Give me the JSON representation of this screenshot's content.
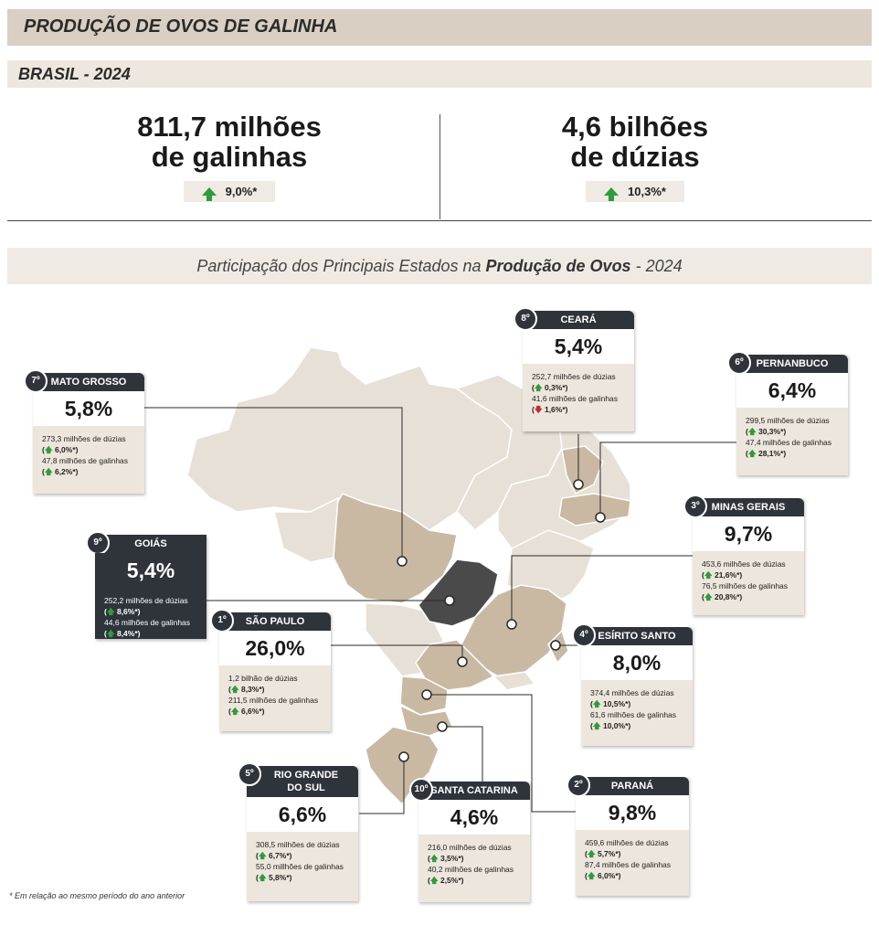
{
  "title": "PRODUÇÃO DE OVOS DE GALINHA",
  "subtitle": "BRASIL - 2024",
  "kpis": [
    {
      "line1": "811,7 milhões",
      "line2": "de galinhas",
      "variation": "9,0%*"
    },
    {
      "line1": "4,6 bilhões",
      "line2": "de dúzias",
      "variation": "10,3%*"
    }
  ],
  "map_title": {
    "prefix": "Participação dos Principais Estados na ",
    "bold": "Produção de Ovos",
    "suffix": " - 2024"
  },
  "footnote": "* Em relação ao mesmo período do ano anterior",
  "colors": {
    "header_bg": "#d9cfc2",
    "card_dark": "#2f333a",
    "state_highlight": "#c9b9a3",
    "state_base": "#e6e0d7",
    "goias": "#4a4a4a",
    "up": "#2e9c3a",
    "down": "#c62828"
  },
  "chart_data": {
    "type": "table",
    "columns": [
      "rank",
      "state",
      "share_pct",
      "dozens",
      "dozens_var",
      "hens",
      "hens_var"
    ],
    "rows": [
      {
        "rank": "1º",
        "state": "SÃO PAULO",
        "share": "26,0%",
        "dozens": "1,2 bilhão de dúzias",
        "dozens_var": "8,3%*",
        "dozens_dir": "up",
        "hens": "211,5 milhões de galinhas",
        "hens_var": "6,6%*",
        "hens_dir": "up"
      },
      {
        "rank": "2º",
        "state": "PARANÁ",
        "share": "9,8%",
        "dozens": "459,6 milhões de dúzias",
        "dozens_var": "5,7%*",
        "dozens_dir": "up",
        "hens": "87,4 milhões de galinhas",
        "hens_var": "6,0%*",
        "hens_dir": "up"
      },
      {
        "rank": "3º",
        "state": "MINAS GERAIS",
        "share": "9,7%",
        "dozens": "453,6 milhões de dúzias",
        "dozens_var": "21,6%*",
        "dozens_dir": "up",
        "hens": "76,5 milhões de galinhas",
        "hens_var": "20,8%*",
        "hens_dir": "up"
      },
      {
        "rank": "4º",
        "state": "ESÍRITO SANTO",
        "share": "8,0%",
        "dozens": "374,4 milhões de dúzias",
        "dozens_var": "10,5%*",
        "dozens_dir": "up",
        "hens": "61,6 milhões de galinhas",
        "hens_var": "10,0%*",
        "hens_dir": "up"
      },
      {
        "rank": "5º",
        "state": "RIO GRANDE DO SUL",
        "share": "6,6%",
        "dozens": "308,5 milhões de dúzias",
        "dozens_var": "6,7%*",
        "dozens_dir": "up",
        "hens": "55,0 millhões de galinhas",
        "hens_var": "5,8%*",
        "hens_dir": "up"
      },
      {
        "rank": "6º",
        "state": "PERNANBUCO",
        "share": "6,4%",
        "dozens": "299,5 milhões de dúzias",
        "dozens_var": "30,3%*",
        "dozens_dir": "up",
        "hens": "47,4 milhões de galinhas",
        "hens_var": "28,1%*",
        "hens_dir": "up"
      },
      {
        "rank": "7º",
        "state": "MATO GROSSO",
        "share": "5,8%",
        "dozens": "273,3 milhões de dúzias",
        "dozens_var": "6,0%*",
        "dozens_dir": "up",
        "hens": "47,8 milhões de galinhas",
        "hens_var": "6,2%*",
        "hens_dir": "up"
      },
      {
        "rank": "8º",
        "state": "CEARÁ",
        "share": "5,4%",
        "dozens": "252,7 milhões de dúzias",
        "dozens_var": "0,3%*",
        "dozens_dir": "up",
        "hens": "41,6 milhões de galinhas",
        "hens_var": "1,6%*",
        "hens_dir": "down"
      },
      {
        "rank": "9º",
        "state": "GOIÁS",
        "share": "5,4%",
        "dozens": "252,2 milhões de dúzias",
        "dozens_var": "8,6%*",
        "dozens_dir": "up",
        "hens": "44,6 milhões de galinhas",
        "hens_var": "8,4%*",
        "hens_dir": "up"
      },
      {
        "rank": "10º",
        "state": "SANTA CATARINA",
        "share": "4,6%",
        "dozens": "216,0 milhões de dúzias",
        "dozens_var": "3,5%*",
        "dozens_dir": "up",
        "hens": "40,2 milhões de galinhas",
        "hens_var": "2,5%*",
        "hens_dir": "up"
      }
    ]
  }
}
